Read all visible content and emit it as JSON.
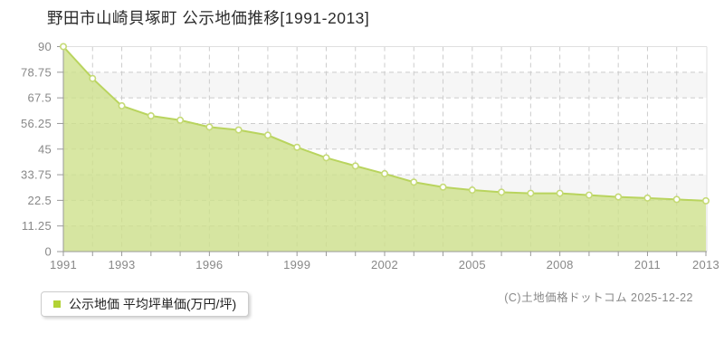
{
  "title": "野田市山崎貝塚町 公示地価推移[1991-2013]",
  "legend": {
    "label": "公示地価 平均坪単価(万円/坪)",
    "marker_color": "#b2d235"
  },
  "footer": {
    "copyright": "(C)土地価格ドットコム 2025-12-22"
  },
  "chart_data": {
    "type": "area",
    "title": "野田市山崎貝塚町 公示地価推移[1991-2013]",
    "series_name": "公示地価 平均坪単価(万円/坪)",
    "x": [
      1991,
      1992,
      1993,
      1994,
      1995,
      1996,
      1997,
      1998,
      1999,
      2000,
      2001,
      2002,
      2003,
      2004,
      2005,
      2006,
      2007,
      2008,
      2009,
      2010,
      2011,
      2012,
      2013
    ],
    "values": [
      90,
      76,
      64,
      59.6,
      57.7,
      54.7,
      53.4,
      51.1,
      45.8,
      41.2,
      37.6,
      34.2,
      30.5,
      28.3,
      27,
      26.1,
      25.6,
      25.6,
      24.8,
      24,
      23.5,
      22.9,
      22.3
    ],
    "ylabel": "万円/坪",
    "xlabel": "",
    "xlim": [
      1991,
      2013
    ],
    "ylim": [
      0,
      90
    ],
    "y_ticks": [
      90,
      78.75,
      67.5,
      56.25,
      45,
      33.75,
      22.5,
      11.25,
      0
    ],
    "x_tick_labels": [
      "1991",
      "1993",
      "1996",
      "1999",
      "2002",
      "2005",
      "2008",
      "2011",
      "2013"
    ],
    "grid": true,
    "legend_position": "bottom-left",
    "colors": {
      "fill": "#cde089",
      "fill_opacity": 0.78,
      "line": "#b9d45e",
      "marker_fill": "#ffffff",
      "marker_stroke": "#c5da76",
      "grid": "#cccccc",
      "band": "#f6f6f6",
      "axis": "#999999",
      "border": "#dfdfdf",
      "tick_label": "#888888"
    }
  }
}
